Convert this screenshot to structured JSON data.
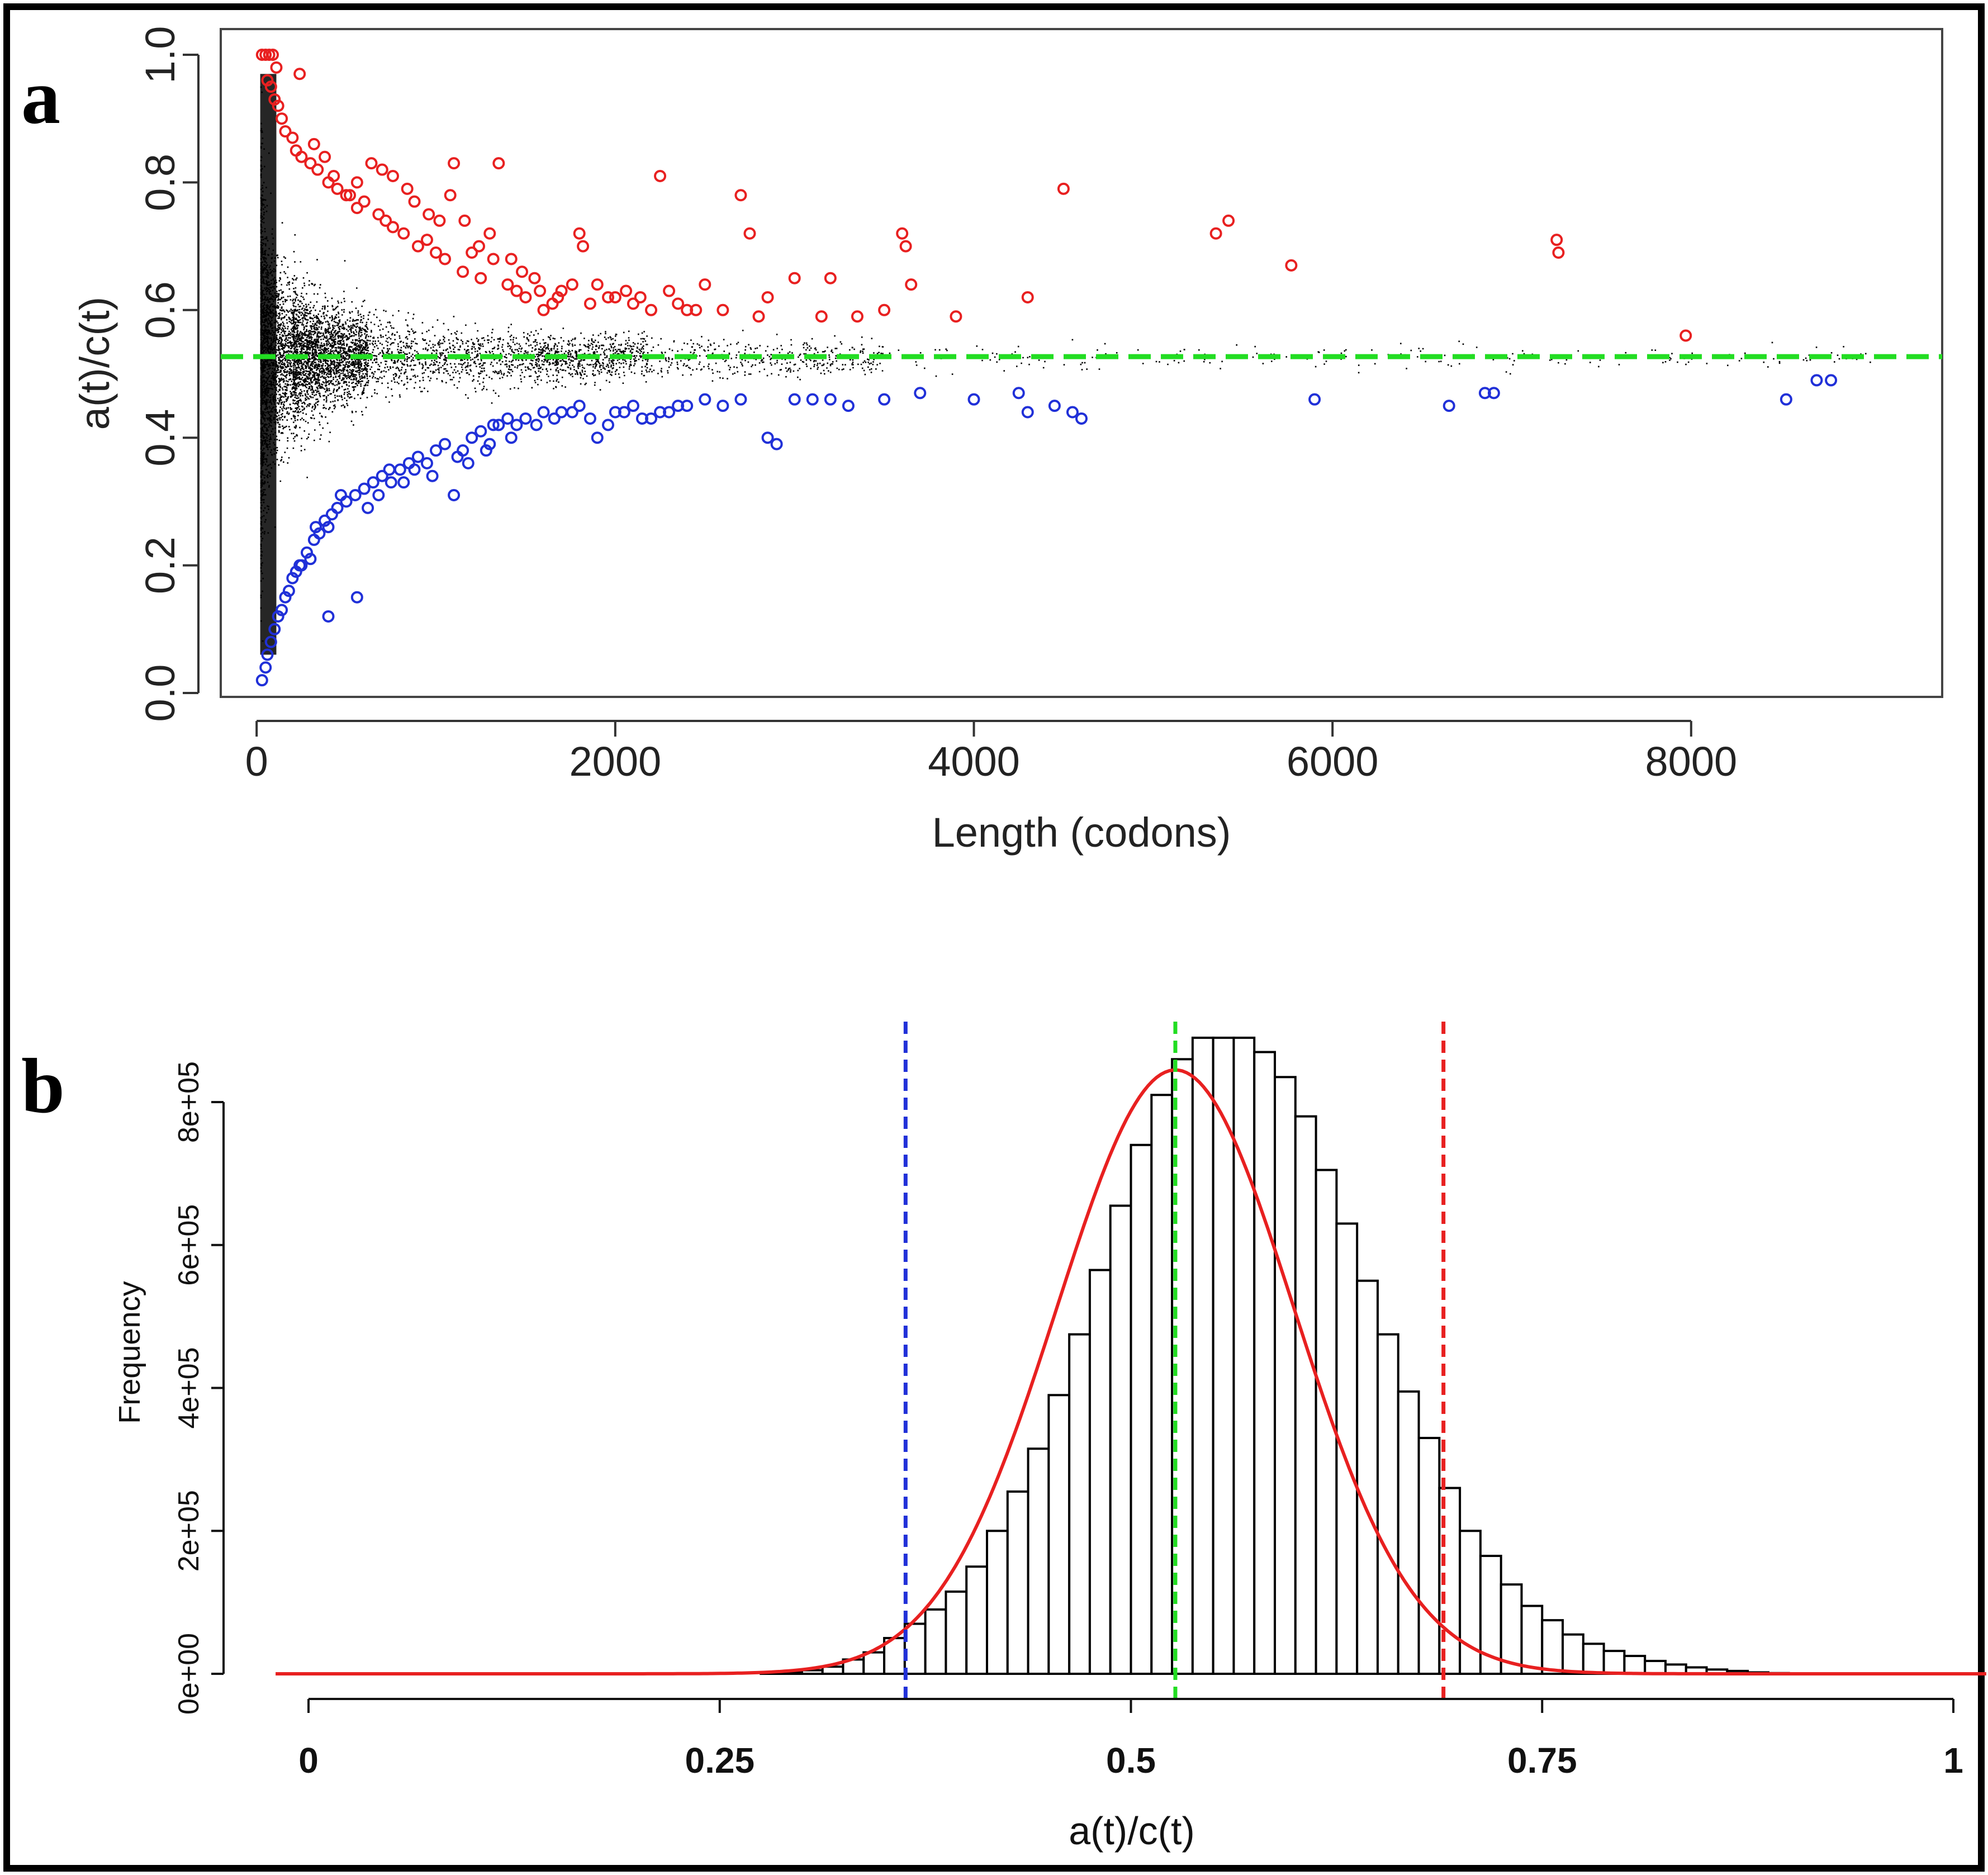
{
  "chart_data": [
    {
      "panel": "a",
      "type": "scatter",
      "xlabel": "Length (codons)",
      "ylabel": "a(t)/c(t)",
      "xlim": [
        -200,
        9400
      ],
      "ylim": [
        0,
        1.0
      ],
      "x_ticks": [
        0,
        2000,
        4000,
        6000,
        8000
      ],
      "x_tick_labels": [
        "0",
        "2000",
        "4000",
        "6000",
        "8000"
      ],
      "y_ticks": [
        0.0,
        0.2,
        0.4,
        0.6,
        0.8,
        1.0
      ],
      "y_tick_labels": [
        "0.0",
        "0.2",
        "0.4",
        "0.6",
        "0.8",
        "1.0"
      ],
      "reference_line": {
        "y": 0.527,
        "color": "#22dd22",
        "style": "dashed"
      },
      "series": [
        {
          "color": "#e82020",
          "marker": "open-circle",
          "points": [
            [
              30,
              1.0
            ],
            [
              50,
              1.0
            ],
            [
              70,
              1.0
            ],
            [
              90,
              1.0
            ],
            [
              110,
              0.98
            ],
            [
              60,
              0.96
            ],
            [
              80,
              0.95
            ],
            [
              100,
              0.93
            ],
            [
              120,
              0.92
            ],
            [
              140,
              0.9
            ],
            [
              160,
              0.88
            ],
            [
              200,
              0.87
            ],
            [
              220,
              0.85
            ],
            [
              250,
              0.84
            ],
            [
              300,
              0.83
            ],
            [
              340,
              0.82
            ],
            [
              400,
              0.8
            ],
            [
              450,
              0.79
            ],
            [
              500,
              0.78
            ],
            [
              560,
              0.76
            ],
            [
              600,
              0.77
            ],
            [
              640,
              0.83
            ],
            [
              680,
              0.75
            ],
            [
              720,
              0.74
            ],
            [
              760,
              0.73
            ],
            [
              820,
              0.72
            ],
            [
              900,
              0.7
            ],
            [
              950,
              0.71
            ],
            [
              1000,
              0.69
            ],
            [
              1050,
              0.68
            ],
            [
              1100,
              0.83
            ],
            [
              1150,
              0.66
            ],
            [
              1200,
              0.69
            ],
            [
              1250,
              0.65
            ],
            [
              1300,
              0.72
            ],
            [
              1350,
              0.83
            ],
            [
              1400,
              0.64
            ],
            [
              1450,
              0.63
            ],
            [
              1500,
              0.62
            ],
            [
              1550,
              0.65
            ],
            [
              1600,
              0.6
            ],
            [
              1650,
              0.61
            ],
            [
              1700,
              0.63
            ],
            [
              1800,
              0.72
            ],
            [
              1820,
              0.7
            ],
            [
              1900,
              0.64
            ],
            [
              2000,
              0.62
            ],
            [
              2100,
              0.61
            ],
            [
              2200,
              0.6
            ],
            [
              2250,
              0.81
            ],
            [
              2300,
              0.63
            ],
            [
              2400,
              0.6
            ],
            [
              2500,
              0.64
            ],
            [
              2600,
              0.6
            ],
            [
              2700,
              0.78
            ],
            [
              2750,
              0.72
            ],
            [
              2800,
              0.59
            ],
            [
              2850,
              0.62
            ],
            [
              3000,
              0.65
            ],
            [
              3150,
              0.59
            ],
            [
              3200,
              0.65
            ],
            [
              3350,
              0.59
            ],
            [
              3500,
              0.6
            ],
            [
              3600,
              0.72
            ],
            [
              3620,
              0.7
            ],
            [
              3650,
              0.64
            ],
            [
              3900,
              0.59
            ],
            [
              4300,
              0.62
            ],
            [
              4500,
              0.79
            ],
            [
              5350,
              0.72
            ],
            [
              5420,
              0.74
            ],
            [
              5770,
              0.67
            ],
            [
              7250,
              0.71
            ],
            [
              7260,
              0.69
            ],
            [
              7970,
              0.56
            ],
            [
              240,
              0.97
            ],
            [
              320,
              0.86
            ],
            [
              380,
              0.84
            ],
            [
              430,
              0.81
            ],
            [
              520,
              0.78
            ],
            [
              560,
              0.8
            ],
            [
              700,
              0.82
            ],
            [
              760,
              0.81
            ],
            [
              840,
              0.79
            ],
            [
              880,
              0.77
            ],
            [
              960,
              0.75
            ],
            [
              1020,
              0.74
            ],
            [
              1080,
              0.78
            ],
            [
              1160,
              0.74
            ],
            [
              1240,
              0.7
            ],
            [
              1320,
              0.68
            ],
            [
              1420,
              0.68
            ],
            [
              1480,
              0.66
            ],
            [
              1580,
              0.63
            ],
            [
              1680,
              0.62
            ],
            [
              1760,
              0.64
            ],
            [
              1860,
              0.61
            ],
            [
              1960,
              0.62
            ],
            [
              2060,
              0.63
            ],
            [
              2140,
              0.62
            ],
            [
              2350,
              0.61
            ],
            [
              2450,
              0.6
            ]
          ]
        },
        {
          "color": "#2030d8",
          "marker": "open-circle",
          "points": [
            [
              30,
              0.02
            ],
            [
              50,
              0.04
            ],
            [
              60,
              0.06
            ],
            [
              80,
              0.08
            ],
            [
              100,
              0.1
            ],
            [
              120,
              0.12
            ],
            [
              140,
              0.13
            ],
            [
              160,
              0.15
            ],
            [
              180,
              0.16
            ],
            [
              200,
              0.18
            ],
            [
              220,
              0.19
            ],
            [
              250,
              0.2
            ],
            [
              280,
              0.22
            ],
            [
              300,
              0.21
            ],
            [
              320,
              0.24
            ],
            [
              350,
              0.25
            ],
            [
              380,
              0.27
            ],
            [
              400,
              0.12
            ],
            [
              420,
              0.28
            ],
            [
              450,
              0.29
            ],
            [
              500,
              0.3
            ],
            [
              550,
              0.31
            ],
            [
              560,
              0.15
            ],
            [
              600,
              0.32
            ],
            [
              650,
              0.33
            ],
            [
              700,
              0.34
            ],
            [
              750,
              0.33
            ],
            [
              800,
              0.35
            ],
            [
              850,
              0.36
            ],
            [
              900,
              0.37
            ],
            [
              950,
              0.36
            ],
            [
              1000,
              0.38
            ],
            [
              1050,
              0.39
            ],
            [
              1100,
              0.31
            ],
            [
              1150,
              0.38
            ],
            [
              1200,
              0.4
            ],
            [
              1250,
              0.41
            ],
            [
              1300,
              0.39
            ],
            [
              1350,
              0.42
            ],
            [
              1400,
              0.43
            ],
            [
              1450,
              0.42
            ],
            [
              1500,
              0.43
            ],
            [
              1600,
              0.44
            ],
            [
              1700,
              0.44
            ],
            [
              1800,
              0.45
            ],
            [
              1900,
              0.4
            ],
            [
              2000,
              0.44
            ],
            [
              2100,
              0.45
            ],
            [
              2200,
              0.43
            ],
            [
              2300,
              0.44
            ],
            [
              2400,
              0.45
            ],
            [
              2500,
              0.46
            ],
            [
              2700,
              0.46
            ],
            [
              2850,
              0.4
            ],
            [
              2900,
              0.39
            ],
            [
              3000,
              0.46
            ],
            [
              3100,
              0.46
            ],
            [
              3200,
              0.46
            ],
            [
              3300,
              0.45
            ],
            [
              3500,
              0.46
            ],
            [
              3700,
              0.47
            ],
            [
              4000,
              0.46
            ],
            [
              4250,
              0.47
            ],
            [
              4300,
              0.44
            ],
            [
              4450,
              0.45
            ],
            [
              4550,
              0.44
            ],
            [
              4600,
              0.43
            ],
            [
              5900,
              0.46
            ],
            [
              6650,
              0.45
            ],
            [
              6850,
              0.47
            ],
            [
              6900,
              0.47
            ],
            [
              8530,
              0.46
            ],
            [
              8700,
              0.49
            ],
            [
              8780,
              0.49
            ],
            [
              240,
              0.2
            ],
            [
              330,
              0.26
            ],
            [
              400,
              0.26
            ],
            [
              470,
              0.31
            ],
            [
              620,
              0.29
            ],
            [
              680,
              0.31
            ],
            [
              740,
              0.35
            ],
            [
              820,
              0.33
            ],
            [
              880,
              0.35
            ],
            [
              980,
              0.34
            ],
            [
              1120,
              0.37
            ],
            [
              1180,
              0.36
            ],
            [
              1280,
              0.38
            ],
            [
              1320,
              0.42
            ],
            [
              1420,
              0.4
            ],
            [
              1560,
              0.42
            ],
            [
              1660,
              0.43
            ],
            [
              1760,
              0.44
            ],
            [
              1860,
              0.43
            ],
            [
              1960,
              0.42
            ],
            [
              2050,
              0.44
            ],
            [
              2150,
              0.43
            ],
            [
              2250,
              0.44
            ],
            [
              2350,
              0.45
            ],
            [
              2600,
              0.45
            ]
          ]
        }
      ]
    },
    {
      "panel": "b",
      "type": "bar",
      "xlabel": "a(t)/c(t)",
      "ylabel": "Frequency",
      "xlim": [
        0,
        1
      ],
      "ylim": [
        0,
        900000
      ],
      "x_ticks": [
        0,
        0.25,
        0.5,
        0.75,
        1
      ],
      "x_tick_labels": [
        "0",
        "0.25",
        "0.5",
        "0.75",
        "1"
      ],
      "y_ticks": [
        0,
        200000,
        400000,
        600000,
        800000
      ],
      "y_tick_labels": [
        "0e+00",
        "2e+05",
        "4e+05",
        "6e+05",
        "8e+05"
      ],
      "bin_width": 0.0125,
      "bin_start": 0.2,
      "bin_counts": [
        0,
        0,
        0,
        0,
        0,
        0,
        1000,
        3000,
        5000,
        10000,
        20000,
        30000,
        50000,
        70000,
        90000,
        115000,
        150000,
        200000,
        255000,
        315000,
        390000,
        475000,
        565000,
        655000,
        740000,
        810000,
        860000,
        890000,
        890000,
        890000,
        870000,
        835000,
        780000,
        705000,
        630000,
        550000,
        475000,
        395000,
        330000,
        260000,
        200000,
        165000,
        125000,
        95000,
        75000,
        55000,
        42000,
        32000,
        25000,
        18000,
        13000,
        9000,
        6000,
        4000,
        2000,
        1000,
        500,
        0
      ],
      "fit_curve": {
        "type": "normal",
        "mean": 0.527,
        "sd": 0.072,
        "peak": 845000,
        "color": "#e82020"
      },
      "vertical_lines": [
        {
          "x": 0.363,
          "color": "#2030d8"
        },
        {
          "x": 0.527,
          "color": "#22dd22"
        },
        {
          "x": 0.69,
          "color": "#e82020"
        }
      ]
    }
  ],
  "labels": {
    "panel_a": "a",
    "panel_b": "b"
  }
}
